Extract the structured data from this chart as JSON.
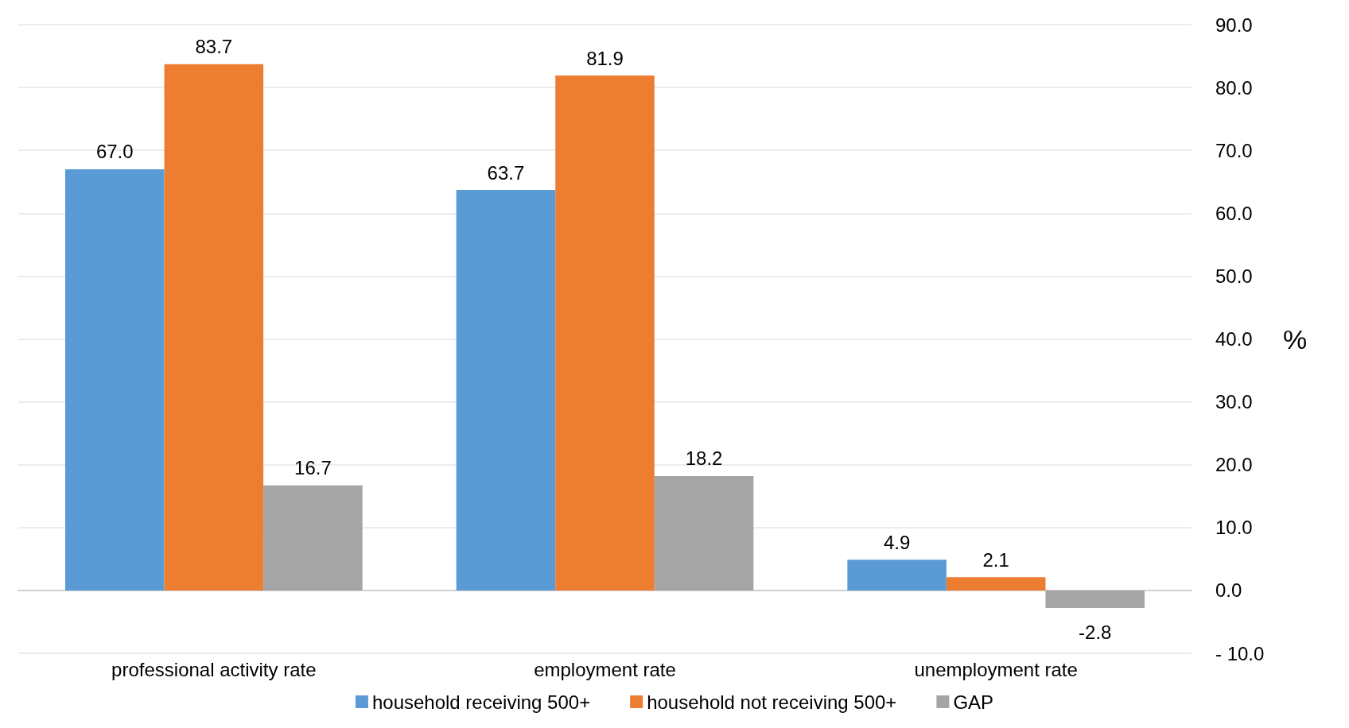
{
  "chart_data": {
    "type": "bar",
    "categories": [
      "professional activity rate",
      "employment rate",
      "unemployment rate"
    ],
    "series": [
      {
        "name": "household receiving 500+",
        "color": "#5b9bd5",
        "values": [
          67.0,
          63.7,
          4.9
        ],
        "value_labels": [
          "67.0",
          "63.7",
          "4.9"
        ]
      },
      {
        "name": "household not receiving 500+",
        "color": "#ed7d31",
        "values": [
          83.7,
          81.9,
          2.1
        ],
        "value_labels": [
          "83.7",
          "81.9",
          "2.1"
        ]
      },
      {
        "name": "GAP",
        "color": "#a5a5a5",
        "values": [
          16.7,
          18.2,
          -2.8
        ],
        "value_labels": [
          "16.7",
          "18.2",
          "-2.8"
        ]
      }
    ],
    "ylabel": "%",
    "ylim": [
      -10,
      90
    ],
    "yticks": [
      {
        "value": -10,
        "label": "- 10.0"
      },
      {
        "value": 0,
        "label": "0.0"
      },
      {
        "value": 10,
        "label": "10.0"
      },
      {
        "value": 20,
        "label": "20.0"
      },
      {
        "value": 30,
        "label": "30.0"
      },
      {
        "value": 40,
        "label": "40.0"
      },
      {
        "value": 50,
        "label": "50.0"
      },
      {
        "value": 60,
        "label": "60.0"
      },
      {
        "value": 70,
        "label": "70.0"
      },
      {
        "value": 80,
        "label": "80.0"
      },
      {
        "value": 90,
        "label": "90.0"
      }
    ],
    "grid": "y",
    "legend": "bottom"
  }
}
